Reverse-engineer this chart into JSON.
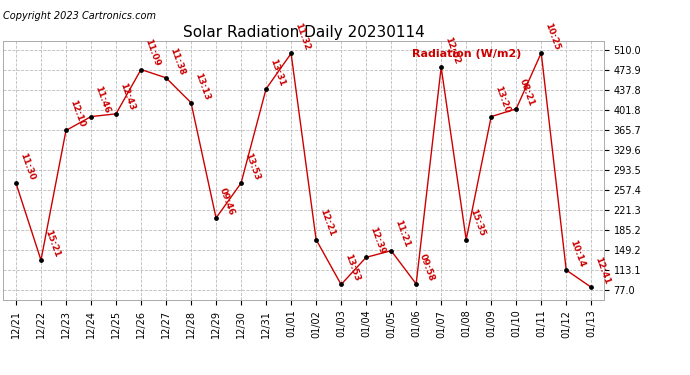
{
  "title": "Solar Radiation Daily 20230114",
  "copyright": "Copyright 2023 Cartronics.com",
  "ylabel": "Radiation (W/m2)",
  "y_ticks": [
    77.0,
    113.1,
    149.2,
    185.2,
    221.3,
    257.4,
    293.5,
    329.6,
    365.7,
    401.8,
    437.8,
    473.9,
    510.0
  ],
  "ylim": [
    59.0,
    526.0
  ],
  "x_labels": [
    "12/21",
    "12/22",
    "12/23",
    "12/24",
    "12/25",
    "12/26",
    "12/27",
    "12/28",
    "12/29",
    "12/30",
    "12/31",
    "01/01",
    "01/02",
    "01/03",
    "01/04",
    "01/05",
    "01/06",
    "01/07",
    "01/08",
    "01/09",
    "01/10",
    "01/11",
    "01/12",
    "01/13"
  ],
  "values": [
    270.0,
    131.0,
    365.0,
    390.0,
    395.0,
    475.0,
    460.0,
    415.0,
    207.0,
    270.0,
    440.0,
    504.0,
    168.0,
    87.0,
    136.0,
    148.0,
    88.0,
    479.0,
    168.0,
    390.0,
    404.0,
    505.0,
    113.0,
    82.0
  ],
  "annotations": [
    "11:30",
    "15:21",
    "12:10",
    "11:46",
    "12:43",
    "11:09",
    "11:38",
    "13:13",
    "09:46",
    "13:53",
    "13:31",
    "11:32",
    "12:21",
    "13:53",
    "12:39",
    "11:21",
    "09:58",
    "12:02",
    "15:35",
    "13:20",
    "08:21",
    "10:25",
    "10:14",
    "12:41"
  ],
  "line_color": "#cc0000",
  "dot_color": "#000000",
  "annotation_color": "#cc0000",
  "bg_color": "#ffffff",
  "grid_color": "#bbbbbb",
  "title_fontsize": 11,
  "copyright_fontsize": 7,
  "annotation_fontsize": 6.5,
  "ylabel_fontsize": 8,
  "tick_fontsize": 7,
  "ylabel_label": "Radiation (W/m2)"
}
